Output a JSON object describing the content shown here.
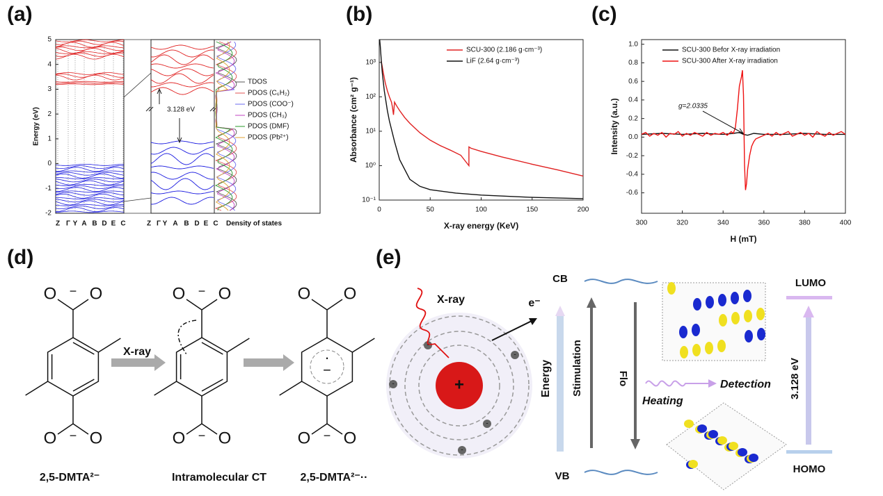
{
  "panel_labels": [
    "(a)",
    "(b)",
    "(c)",
    "(d)",
    "(e)"
  ],
  "band_structure": {
    "ylabel": "Energy (eV)",
    "yticks": [
      5,
      4,
      3,
      2,
      1,
      0,
      -1,
      -2
    ],
    "kpoints": [
      "Z",
      "Γ",
      "Y",
      "A",
      "B",
      "D",
      "E",
      "C"
    ],
    "gap_label": "3.128 eV",
    "dos_label": "Density of states",
    "legend": [
      {
        "name": "TDOS",
        "color": "#555555"
      },
      {
        "name": "PDOS (C₆H₂)",
        "color": "#e05050"
      },
      {
        "name": "PDOS (COO⁻)",
        "color": "#6a6af0"
      },
      {
        "name": "PDOS (CH₃)",
        "color": "#c040c0"
      },
      {
        "name": "PDOS (DMF)",
        "color": "#2a9a2a"
      },
      {
        "name": "PDOS (Pb²⁺)",
        "color": "#e0a030"
      }
    ]
  },
  "chart_data": [
    {
      "type": "line",
      "ylog": true,
      "xlabel": "X-ray energy (KeV)",
      "ylabel": "Absorbance (cm² g⁻¹)",
      "legend": "upper right",
      "xlim": [
        0,
        200
      ],
      "xticks": [
        0,
        50,
        100,
        150,
        200
      ],
      "ylim": [
        0.1,
        4600
      ],
      "yticks": [
        {
          "value": 0.1,
          "label": "10⁻¹"
        },
        {
          "value": 1,
          "label": "10⁰"
        },
        {
          "value": 10,
          "label": "10¹"
        },
        {
          "value": 100,
          "label": "10²"
        },
        {
          "value": 1000,
          "label": "10³"
        }
      ],
      "series": [
        {
          "name": "SCU-300 (2.186 g·cm⁻³)",
          "color": "#e02020",
          "x": [
            2,
            4,
            6,
            8,
            10,
            12,
            13,
            14,
            15,
            17,
            20,
            25,
            30,
            40,
            50,
            60,
            70,
            80,
            88,
            88,
            90,
            100,
            120,
            150,
            175,
            200
          ],
          "values": [
            1100,
            500,
            250,
            150,
            100,
            70,
            50,
            30,
            70,
            55,
            40,
            25,
            17,
            9,
            5.5,
            3.8,
            2.8,
            2.0,
            1.0,
            3.5,
            3.2,
            2.6,
            1.8,
            1.1,
            0.75,
            0.5
          ]
        },
        {
          "name": "LiF (2.64 g·cm⁻³)",
          "color": "#111111",
          "x": [
            0.5,
            1,
            2,
            3,
            5,
            8,
            10,
            15,
            20,
            30,
            40,
            50,
            75,
            100,
            150,
            200
          ],
          "values": [
            4500,
            3000,
            1200,
            500,
            150,
            40,
            20,
            5,
            1.5,
            0.4,
            0.25,
            0.2,
            0.16,
            0.14,
            0.12,
            0.11
          ]
        }
      ]
    },
    {
      "type": "line",
      "ylog": false,
      "xlabel": "H (mT)",
      "ylabel": "Intensity (a.u.)",
      "legend": "upper left",
      "annotation": "g=2.0335",
      "xlim": [
        300,
        400
      ],
      "xticks": [
        300,
        320,
        340,
        360,
        380,
        400
      ],
      "ylim": [
        -0.82,
        1.05
      ],
      "yticks": [
        -0.6,
        -0.4,
        -0.2,
        {
          "value": 0,
          "label": "0.0"
        },
        0.2,
        0.4,
        0.6,
        0.8,
        {
          "value": 1,
          "label": "1.0"
        }
      ],
      "series": [
        {
          "name": "SCU-300 Befor X-ray irradiation",
          "color": "#111111",
          "x": [
            300,
            310,
            320,
            330,
            340,
            345,
            348,
            350,
            352,
            355,
            360,
            370,
            380,
            390,
            400
          ],
          "values": [
            0.03,
            0.04,
            0.03,
            0.04,
            0.03,
            0.04,
            0.05,
            0.03,
            0.02,
            0.04,
            0.03,
            0.03,
            0.04,
            0.03,
            0.03
          ]
        },
        {
          "name": "SCU-300 After X-ray irradiation",
          "color": "#ee1111",
          "x": [
            300,
            302,
            304,
            306,
            308,
            310,
            312,
            314,
            316,
            318,
            320,
            322,
            324,
            326,
            328,
            330,
            332,
            334,
            336,
            338,
            340,
            342,
            344,
            345,
            346,
            347,
            348,
            349,
            349.5,
            350,
            350.5,
            351,
            351.5,
            352,
            353,
            354,
            355,
            356,
            358,
            360,
            362,
            364,
            366,
            368,
            370,
            372,
            374,
            376,
            378,
            380,
            382,
            384,
            386,
            388,
            390,
            392,
            394,
            396,
            398,
            400
          ],
          "values": [
            0.03,
            0.05,
            0.01,
            0.04,
            0.02,
            0.05,
            0.0,
            0.04,
            0.03,
            0.06,
            0.01,
            0.04,
            0.02,
            0.05,
            0.03,
            0.01,
            0.05,
            0.02,
            0.04,
            0.03,
            0.05,
            0.02,
            0.06,
            0.04,
            0.1,
            0.3,
            0.55,
            0.65,
            0.72,
            0.45,
            -0.3,
            -0.57,
            -0.5,
            -0.35,
            -0.2,
            -0.1,
            -0.05,
            -0.02,
            0.0,
            0.02,
            0.04,
            0.01,
            0.05,
            0.02,
            0.04,
            0.06,
            0.01,
            0.03,
            0.05,
            0.02,
            0.04,
            0.0,
            0.06,
            0.03,
            0.01,
            0.05,
            0.02,
            0.04,
            0.06,
            0.03
          ]
        }
      ]
    }
  ],
  "scheme_d": {
    "atom": "O",
    "charge": "−",
    "arrow_label": "X-ray",
    "radical": "·",
    "molecules": [
      "2,5-DMTA²⁻",
      "Intramolecular CT",
      "2,5-DMTA²⁻··"
    ]
  },
  "scheme_e": {
    "xray": "X-ray",
    "electron": "e⁻",
    "nucleus": "+",
    "electron_charge": "-",
    "cb": "CB",
    "vb": "VB",
    "energy": "Energy",
    "stimulation": "Stimulation",
    "flo": "Flo",
    "heating": "Heating",
    "detection": "Detection",
    "lumo": "LUMO",
    "homo": "HOMO",
    "gap": "3.128 eV"
  }
}
